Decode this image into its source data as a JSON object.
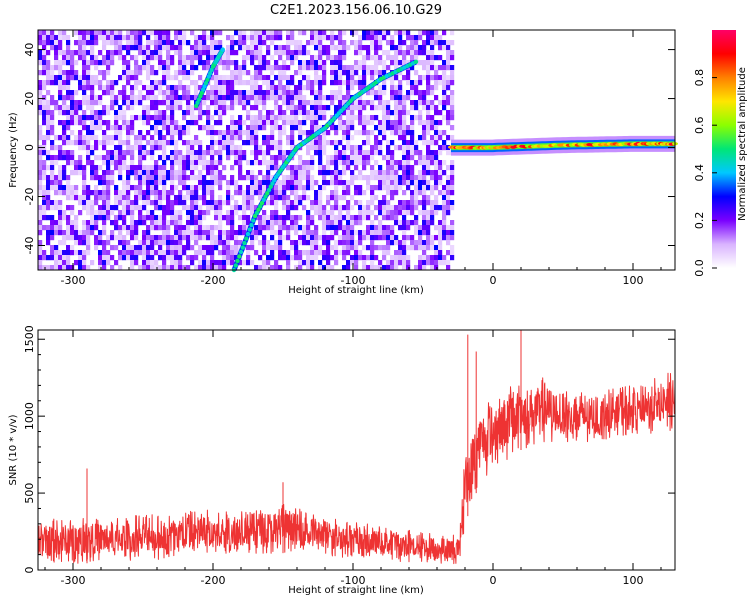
{
  "title": "C2E1.2023.156.06.10.G29",
  "chart_data": [
    {
      "type": "heatmap",
      "xlabel": "Height of straight line (km)",
      "ylabel": "Frequency (Hz)",
      "xlim": [
        -325,
        130
      ],
      "ylim": [
        -50,
        48
      ],
      "xticks": [
        -300,
        -200,
        -100,
        0,
        100
      ],
      "yticks": [
        -40,
        -20,
        0,
        20,
        40
      ],
      "colorbar": {
        "label": "Normalized spectral amplitude",
        "range": [
          0.0,
          1.0
        ],
        "ticks": [
          0.0,
          0.2,
          0.4,
          0.6,
          0.8
        ],
        "colormap": [
          "#ffffff",
          "#d9b3ff",
          "#7a00ff",
          "#0000ff",
          "#00c8ff",
          "#00e676",
          "#8cff00",
          "#ffe600",
          "#ff8000",
          "#ff0000",
          "#ff0066"
        ]
      },
      "features": [
        {
          "name": "main tone",
          "points": [
            [
              -185,
              -50
            ],
            [
              -170,
              -28
            ],
            [
              -155,
              -12
            ],
            [
              -140,
              0
            ],
            [
              -120,
              8
            ],
            [
              -100,
              20
            ],
            [
              -80,
              28
            ],
            [
              -55,
              35
            ]
          ]
        },
        {
          "name": "secondary tone",
          "points": [
            [
              -212,
              17
            ],
            [
              -200,
              33
            ],
            [
              -193,
              40
            ]
          ]
        },
        {
          "name": "carrier band",
          "points": [
            [
              -30,
              0
            ],
            [
              0,
              0
            ],
            [
              50,
              1
            ],
            [
              100,
              1.5
            ],
            [
              130,
              1.5
            ]
          ]
        }
      ],
      "noise_region_x": [
        -325,
        -30
      ]
    },
    {
      "type": "line",
      "xlabel": "Height of straight line (km)",
      "ylabel": "SNR (10 * v/v)",
      "xlim": [
        -325,
        130
      ],
      "ylim": [
        0,
        1560
      ],
      "xticks": [
        -300,
        -200,
        -100,
        0,
        100
      ],
      "yticks": [
        0,
        500,
        1000,
        1500
      ],
      "color": "#ee3333",
      "envelope": [
        {
          "x": -325,
          "low": 30,
          "high": 330
        },
        {
          "x": -250,
          "low": 60,
          "high": 360
        },
        {
          "x": -200,
          "low": 90,
          "high": 400
        },
        {
          "x": -150,
          "low": 110,
          "high": 430
        },
        {
          "x": -120,
          "low": 90,
          "high": 360
        },
        {
          "x": -80,
          "low": 60,
          "high": 280
        },
        {
          "x": -40,
          "low": 40,
          "high": 240
        },
        {
          "x": -24,
          "low": 40,
          "high": 230
        },
        {
          "x": -20,
          "low": 300,
          "high": 800
        },
        {
          "x": -10,
          "low": 550,
          "high": 1080
        },
        {
          "x": 0,
          "low": 650,
          "high": 1150
        },
        {
          "x": 20,
          "low": 780,
          "high": 1250
        },
        {
          "x": 40,
          "low": 820,
          "high": 1250
        },
        {
          "x": 60,
          "low": 800,
          "high": 1150
        },
        {
          "x": 80,
          "low": 850,
          "high": 1180
        },
        {
          "x": 100,
          "low": 880,
          "high": 1200
        },
        {
          "x": 130,
          "low": 900,
          "high": 1300
        }
      ],
      "spikes": [
        [
          -290,
          660
        ],
        [
          -150,
          570
        ],
        [
          -18,
          1530
        ],
        [
          -12,
          1420
        ],
        [
          20,
          1580
        ],
        [
          130,
          1510
        ]
      ]
    }
  ]
}
